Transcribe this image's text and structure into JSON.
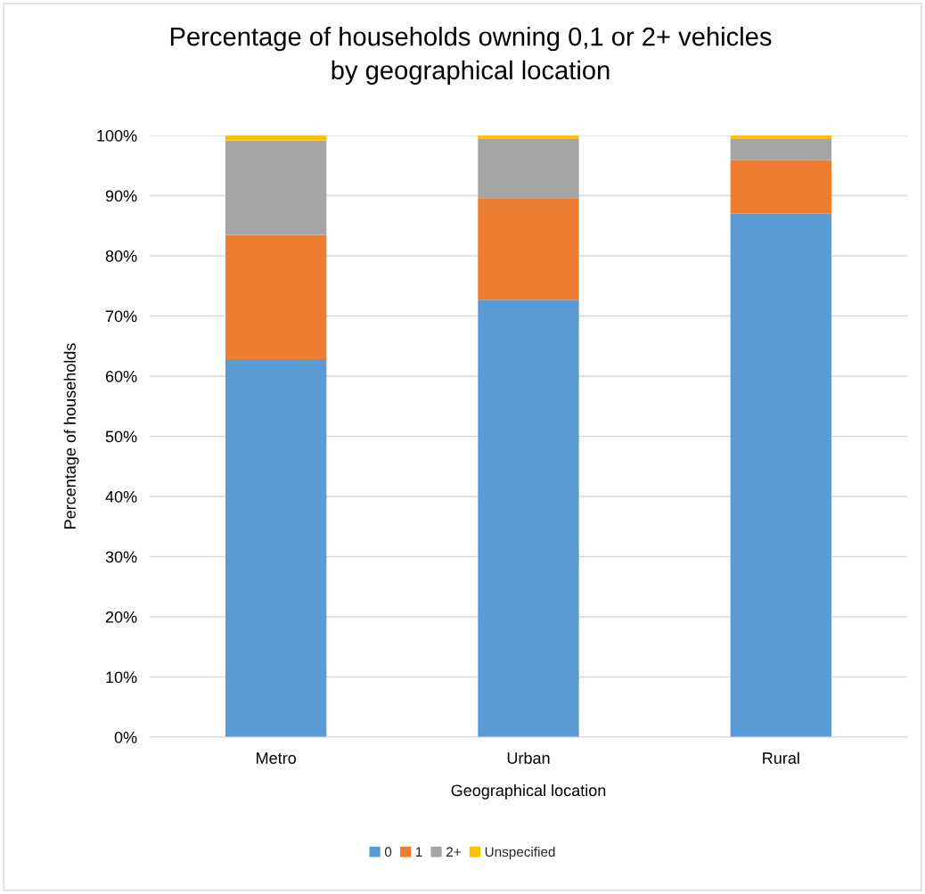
{
  "chart_data": {
    "type": "bar",
    "stacked": true,
    "title": "Percentage of households owning 0,1 or 2+ vehicles\nby geographical location",
    "xlabel": "Geographical location",
    "ylabel": "Percentage of households",
    "categories": [
      "Metro",
      "Urban",
      "Rural"
    ],
    "series": [
      {
        "name": "0",
        "color": "#5b9bd5",
        "values": [
          62.8,
          72.7,
          87.0
        ]
      },
      {
        "name": "1",
        "color": "#ed7d31",
        "values": [
          20.7,
          16.9,
          8.9
        ]
      },
      {
        "name": "2+",
        "color": "#a5a5a5",
        "values": [
          15.7,
          9.8,
          3.5
        ]
      },
      {
        "name": "Unspecified",
        "color": "#ffc000",
        "values": [
          0.8,
          0.6,
          0.6
        ]
      }
    ],
    "ylim": [
      0,
      100
    ],
    "yticks": [
      {
        "value": 0,
        "label": "0%"
      },
      {
        "value": 10,
        "label": "10%"
      },
      {
        "value": 20,
        "label": "20%"
      },
      {
        "value": 30,
        "label": "30%"
      },
      {
        "value": 40,
        "label": "40%"
      },
      {
        "value": 50,
        "label": "50%"
      },
      {
        "value": 60,
        "label": "60%"
      },
      {
        "value": 70,
        "label": "70%"
      },
      {
        "value": 80,
        "label": "80%"
      },
      {
        "value": 90,
        "label": "90%"
      },
      {
        "value": 100,
        "label": "100%"
      }
    ],
    "grid": "y",
    "legend": "bottom"
  }
}
